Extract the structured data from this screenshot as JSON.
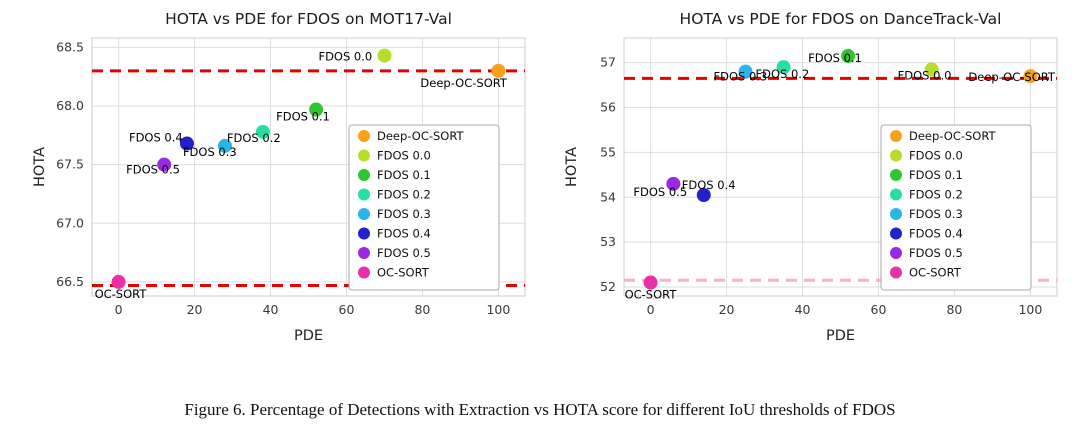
{
  "caption": "Figure 6. Percentage of Detections with Extraction vs HOTA score for different IoU thresholds of FDOS",
  "chart_data": [
    {
      "type": "scatter",
      "title": "HOTA vs PDE for FDOS on MOT17-Val",
      "xlabel": "PDE",
      "ylabel": "HOTA",
      "xlim": [
        -7,
        107
      ],
      "ylim": [
        66.38,
        68.58
      ],
      "xticks": [
        "0",
        "20",
        "40",
        "60",
        "80",
        "100"
      ],
      "yticks": [
        "66.5",
        "67.0",
        "67.5",
        "68.0",
        "68.5"
      ],
      "grid": true,
      "legend_position": "lower right",
      "hlines": [
        {
          "y": 68.3,
          "color": "#e60000",
          "style": "dashed"
        },
        {
          "y": 66.47,
          "color": "#e60000",
          "style": "dashed"
        }
      ],
      "series": [
        {
          "name": "Deep-OC-SORT",
          "color": "#f9a11b",
          "x": 100,
          "y": 68.3,
          "label_dx": -78,
          "label_dy": 16
        },
        {
          "name": "FDOS 0.0",
          "color": "#b8dc2c",
          "x": 70,
          "y": 68.43,
          "label_dx": -66,
          "label_dy": 5
        },
        {
          "name": "FDOS 0.1",
          "color": "#2ec72e",
          "x": 52,
          "y": 67.97,
          "label_dx": -40,
          "label_dy": 11
        },
        {
          "name": "FDOS 0.2",
          "color": "#25e0a0",
          "x": 38,
          "y": 67.78,
          "label_dx": -36,
          "label_dy": 10
        },
        {
          "name": "FDOS 0.3",
          "color": "#27b6ea",
          "x": 28,
          "y": 67.66,
          "label_dx": -42,
          "label_dy": 10
        },
        {
          "name": "FDOS 0.4",
          "color": "#2222cc",
          "x": 18,
          "y": 67.68,
          "label_dx": -58,
          "label_dy": -2
        },
        {
          "name": "FDOS 0.5",
          "color": "#9929e3",
          "x": 12,
          "y": 67.5,
          "label_dx": -38,
          "label_dy": 9
        },
        {
          "name": "OC-SORT",
          "color": "#eb2fa8",
          "x": 0,
          "y": 66.5,
          "label_dx": -24,
          "label_dy": 16
        }
      ]
    },
    {
      "type": "scatter",
      "title": "HOTA vs PDE for FDOS on DanceTrack-Val",
      "xlabel": "PDE",
      "ylabel": "HOTA",
      "xlim": [
        -7,
        107
      ],
      "ylim": [
        51.8,
        57.55
      ],
      "xticks": [
        "0",
        "20",
        "40",
        "60",
        "80",
        "100"
      ],
      "yticks": [
        "52",
        "53",
        "54",
        "55",
        "56",
        "57"
      ],
      "grid": true,
      "legend_position": "lower right",
      "hlines": [
        {
          "y": 56.65,
          "color": "#e60000",
          "style": "dashed"
        },
        {
          "y": 52.15,
          "color": "#ffb0bf",
          "style": "dashed"
        }
      ],
      "series": [
        {
          "name": "Deep-OC-SORT",
          "color": "#f9a11b",
          "x": 100,
          "y": 56.7,
          "label_dx": -62,
          "label_dy": 5
        },
        {
          "name": "FDOS 0.0",
          "color": "#b8dc2c",
          "x": 74,
          "y": 56.85,
          "label_dx": -34,
          "label_dy": 10
        },
        {
          "name": "FDOS 0.1",
          "color": "#2ec72e",
          "x": 52,
          "y": 57.15,
          "label_dx": -40,
          "label_dy": 6
        },
        {
          "name": "FDOS 0.2",
          "color": "#25e0a0",
          "x": 35,
          "y": 56.9,
          "label_dx": -28,
          "label_dy": 11
        },
        {
          "name": "FDOS 0.3",
          "color": "#27b6ea",
          "x": 25,
          "y": 56.8,
          "label_dx": -32,
          "label_dy": 9
        },
        {
          "name": "FDOS 0.4",
          "color": "#2222cc",
          "x": 14,
          "y": 54.05,
          "label_dx": -22,
          "label_dy": -6
        },
        {
          "name": "FDOS 0.5",
          "color": "#9929e3",
          "x": 6,
          "y": 54.3,
          "label_dx": -40,
          "label_dy": 12
        },
        {
          "name": "OC-SORT",
          "color": "#eb2fa8",
          "x": 0,
          "y": 52.1,
          "label_dx": -26,
          "label_dy": 16
        }
      ]
    }
  ]
}
